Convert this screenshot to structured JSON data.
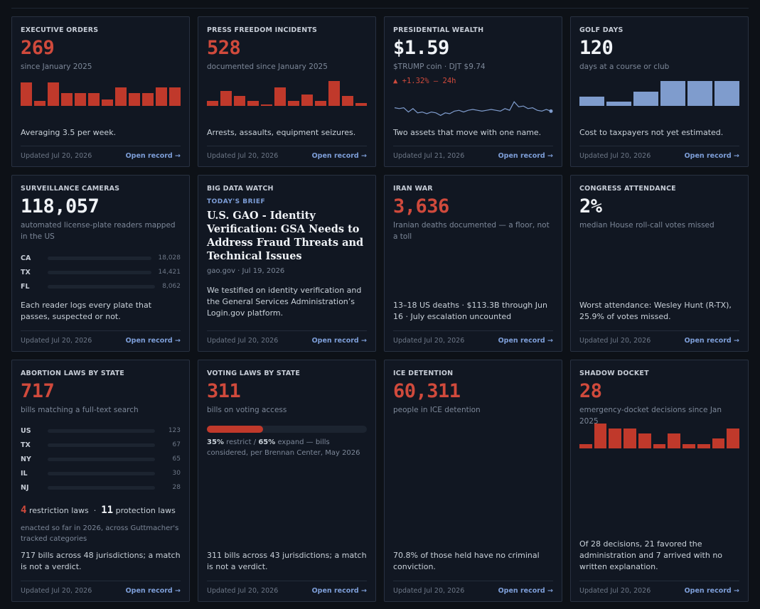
{
  "cards": {
    "exec": {
      "label": "EXECUTIVE ORDERS",
      "value": "269",
      "sub": "since January 2025",
      "bars": [
        0.95,
        0.2,
        0.95,
        0.5,
        0.5,
        0.5,
        0.25,
        0.75,
        0.5,
        0.5,
        0.75,
        0.75
      ],
      "desc": "Averaging 3.5 per week.",
      "updated": "Updated Jul 20, 2026",
      "open": "Open record →"
    },
    "press": {
      "label": "PRESS FREEDOM INCIDENTS",
      "value": "528",
      "sub": "documented since January 2025",
      "bars": [
        0.2,
        0.6,
        0.4,
        0.2,
        0.05,
        0.75,
        0.2,
        0.45,
        0.2,
        1.0,
        0.4,
        0.1
      ],
      "desc": "Arrests, assaults, equipment seizures.",
      "updated": "Updated Jul 20, 2026",
      "open": "Open record →"
    },
    "wealth": {
      "label": "PRESIDENTIAL WEALTH",
      "value": "$1.59",
      "sub": "$TRUMP coin · DJT $9.74",
      "change": "▲ +1.32% — 24h",
      "spark": [
        0.6,
        0.55,
        0.6,
        0.35,
        0.55,
        0.3,
        0.35,
        0.25,
        0.35,
        0.3,
        0.15,
        0.3,
        0.25,
        0.4,
        0.45,
        0.35,
        0.45,
        0.5,
        0.45,
        0.4,
        0.45,
        0.5,
        0.45,
        0.4,
        0.55,
        0.45,
        0.95,
        0.65,
        0.7,
        0.55,
        0.6,
        0.45,
        0.4,
        0.5,
        0.4
      ],
      "desc": "Two assets that move with one name.",
      "updated": "Updated Jul 21, 2026",
      "open": "Open record →"
    },
    "golf": {
      "label": "GOLF DAYS",
      "value": "120",
      "sub": "days at a course or club",
      "bars": [
        0.38,
        0.18,
        0.58,
        1.0,
        1.0,
        1.0
      ],
      "desc": "Cost to taxpayers not yet estimated.",
      "updated": "Updated Jul 20, 2026",
      "open": "Open record →"
    },
    "surv": {
      "label": "SURVEILLANCE CAMERAS",
      "value": "118,057",
      "sub": "automated license-plate readers mapped in the US",
      "rows": [
        {
          "state": "CA",
          "value": "18,028"
        },
        {
          "state": "TX",
          "value": "14,421"
        },
        {
          "state": "FL",
          "value": "8,062"
        }
      ],
      "desc": "Each reader logs every plate that passes, suspected or not.",
      "updated": "Updated Jul 20, 2026",
      "open": "Open record →"
    },
    "bigdata": {
      "label": "BIG DATA WATCH",
      "kicker": "TODAY'S BRIEF",
      "title": "U.S. GAO - Identity Verification: GSA Needs to Address Fraud Threats and Technical Issues",
      "source": "gao.gov · Jul 19, 2026",
      "body": "We testified on identity verification and the General Services Administration’s Login.gov platform.",
      "updated": "Updated Jul 20, 2026",
      "open": "Open record →"
    },
    "iran": {
      "label": "IRAN WAR",
      "value": "3,636",
      "sub": "Iranian deaths documented — a floor, not a toll",
      "desc": "13–18 US deaths · $113.3B through Jun 16 · July escalation uncounted",
      "updated": "Updated Jul 20, 2026",
      "open": "Open record →"
    },
    "congress": {
      "label": "CONGRESS ATTENDANCE",
      "value": "2%",
      "sub": "median House roll-call votes missed",
      "desc": "Worst attendance: Wesley Hunt (R-TX), 25.9% of votes missed.",
      "updated": "Updated Jul 20, 2026",
      "open": "Open record →"
    },
    "abortion": {
      "label": "ABORTION LAWS BY STATE",
      "value": "717",
      "sub": "bills matching a full-text search",
      "rows": [
        {
          "state": "US",
          "value": "123"
        },
        {
          "state": "TX",
          "value": "67"
        },
        {
          "state": "NY",
          "value": "65"
        },
        {
          "state": "IL",
          "value": "30"
        },
        {
          "state": "NJ",
          "value": "28"
        }
      ],
      "restrict_n": "4",
      "restrict_label": "restriction laws",
      "protect_n": "11",
      "protect_label": "protection laws",
      "laws_note": "enacted so far in 2026, across Guttmacher's tracked categories",
      "desc": "717 bills across 48 jurisdictions; a match is not a verdict.",
      "updated": "Updated Jul 20, 2026",
      "open": "Open record →"
    },
    "voting": {
      "label": "VOTING LAWS BY STATE",
      "value": "311",
      "sub": "bills on voting access",
      "restrict_pct": 0.35,
      "restrict_bold": "35%",
      "restrict_text": " restrict / ",
      "expand_bold": "65%",
      "expand_text": " expand — bills considered, per Brennan Center, May 2026",
      "desc": "311 bills across 43 jurisdictions; a match is not a verdict.",
      "updated": "Updated Jul 20, 2026",
      "open": "Open record →"
    },
    "ice": {
      "label": "ICE DETENTION",
      "value": "60,311",
      "sub": "people in ICE detention",
      "desc": "70.8% of those held have no criminal conviction.",
      "updated": "Updated Jul 20, 2026",
      "open": "Open record →"
    },
    "shadow": {
      "label": "SHADOW DOCKET",
      "value": "28",
      "sub": "emergency-docket decisions since Jan 2025",
      "bars": [
        0.18,
        1.0,
        0.8,
        0.8,
        0.6,
        0.18,
        0.6,
        0.18,
        0.18,
        0.4,
        0.8
      ],
      "desc": "Of 28 decisions, 21 favored the administration and 7 arrived with no written explanation.",
      "updated": "Updated Jul 20, 2026",
      "open": "Open record →"
    }
  }
}
